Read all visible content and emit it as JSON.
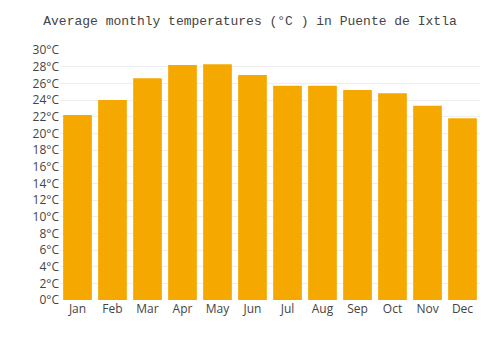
{
  "chart_data": {
    "type": "bar",
    "title": "Average monthly temperatures (°C ) in Puente de Ixtla",
    "categories": [
      "Jan",
      "Feb",
      "Mar",
      "Apr",
      "May",
      "Jun",
      "Jul",
      "Aug",
      "Sep",
      "Oct",
      "Nov",
      "Dec"
    ],
    "values": [
      22.2,
      24.0,
      26.6,
      28.2,
      28.3,
      27.0,
      25.7,
      25.7,
      25.2,
      24.8,
      23.3,
      21.8
    ],
    "color": "#F5A800",
    "ylim": [
      0,
      30
    ],
    "yticks": [
      {
        "value": 0,
        "label": "0°C"
      },
      {
        "value": 2,
        "label": "2°C"
      },
      {
        "value": 4,
        "label": "4°C"
      },
      {
        "value": 6,
        "label": "6°C"
      },
      {
        "value": 8,
        "label": "8°C"
      },
      {
        "value": 10,
        "label": "10°C"
      },
      {
        "value": 12,
        "label": "12°C"
      },
      {
        "value": 14,
        "label": "14°C"
      },
      {
        "value": 16,
        "label": "16°C"
      },
      {
        "value": 18,
        "label": "18°C"
      },
      {
        "value": 20,
        "label": "20°C"
      },
      {
        "value": 22,
        "label": "22°C"
      },
      {
        "value": 24,
        "label": "24°C"
      },
      {
        "value": 26,
        "label": "26°C"
      },
      {
        "value": 28,
        "label": "28°C"
      },
      {
        "value": 30,
        "label": "30°C"
      }
    ],
    "grid": true
  }
}
